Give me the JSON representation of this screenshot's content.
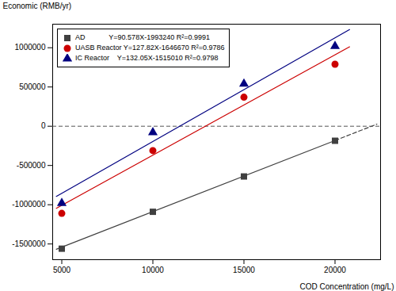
{
  "chart_data": {
    "type": "scatter",
    "xlabel": "COD Concentration (mg/L)",
    "ylabel": "Economic (RMB/yr)",
    "xlim": [
      4500,
      22500
    ],
    "ylim": [
      -1700000,
      1300000
    ],
    "xticks": [
      5000,
      10000,
      15000,
      20000
    ],
    "yticks": [
      -1500000,
      -1000000,
      -500000,
      0,
      500000,
      1000000
    ],
    "grid": false,
    "legend": "upper left",
    "hline": {
      "y": 0,
      "color": "#555555",
      "line_style": "dashed"
    },
    "series": [
      {
        "name": "AD            Y=90.578X-1993240 R²=0.9991",
        "color": "#404040",
        "marker": "square",
        "x": [
          5000,
          10000,
          15000,
          20000
        ],
        "values": [
          -1560000,
          -1090000,
          -640000,
          -185000
        ],
        "trendline": [
          {
            "x": [
              4700,
              20000
            ],
            "values": [
              -1567523.4,
              -181680
            ],
            "line_style": "solid"
          },
          {
            "x": [
              20000,
              22300
            ],
            "values": [
              -181680,
              26649.4
            ],
            "line_style": "dashed"
          }
        ]
      },
      {
        "name": "UASB Reactor Y=127.82X-1646670 R²=0.9786",
        "color": "#cc0000",
        "marker": "circle",
        "x": [
          5000,
          10000,
          15000,
          20000
        ],
        "values": [
          -1110000,
          -310000,
          370000,
          790000
        ],
        "trendline": [
          {
            "x": [
              4700,
              20800
            ],
            "values": [
              -1045916,
              1011986
            ],
            "line_style": "solid"
          }
        ]
      },
      {
        "name": "IC Reactor    Y=132.05X-1515010 R²=0.9798",
        "color": "#000080",
        "marker": "triangle",
        "x": [
          5000,
          10000,
          15000,
          20000
        ],
        "values": [
          -980000,
          -80000,
          540000,
          1020000
        ],
        "trendline": [
          {
            "x": [
              4700,
              20800
            ],
            "values": [
              -894375,
              1231630
            ],
            "line_style": "solid"
          }
        ]
      }
    ]
  }
}
